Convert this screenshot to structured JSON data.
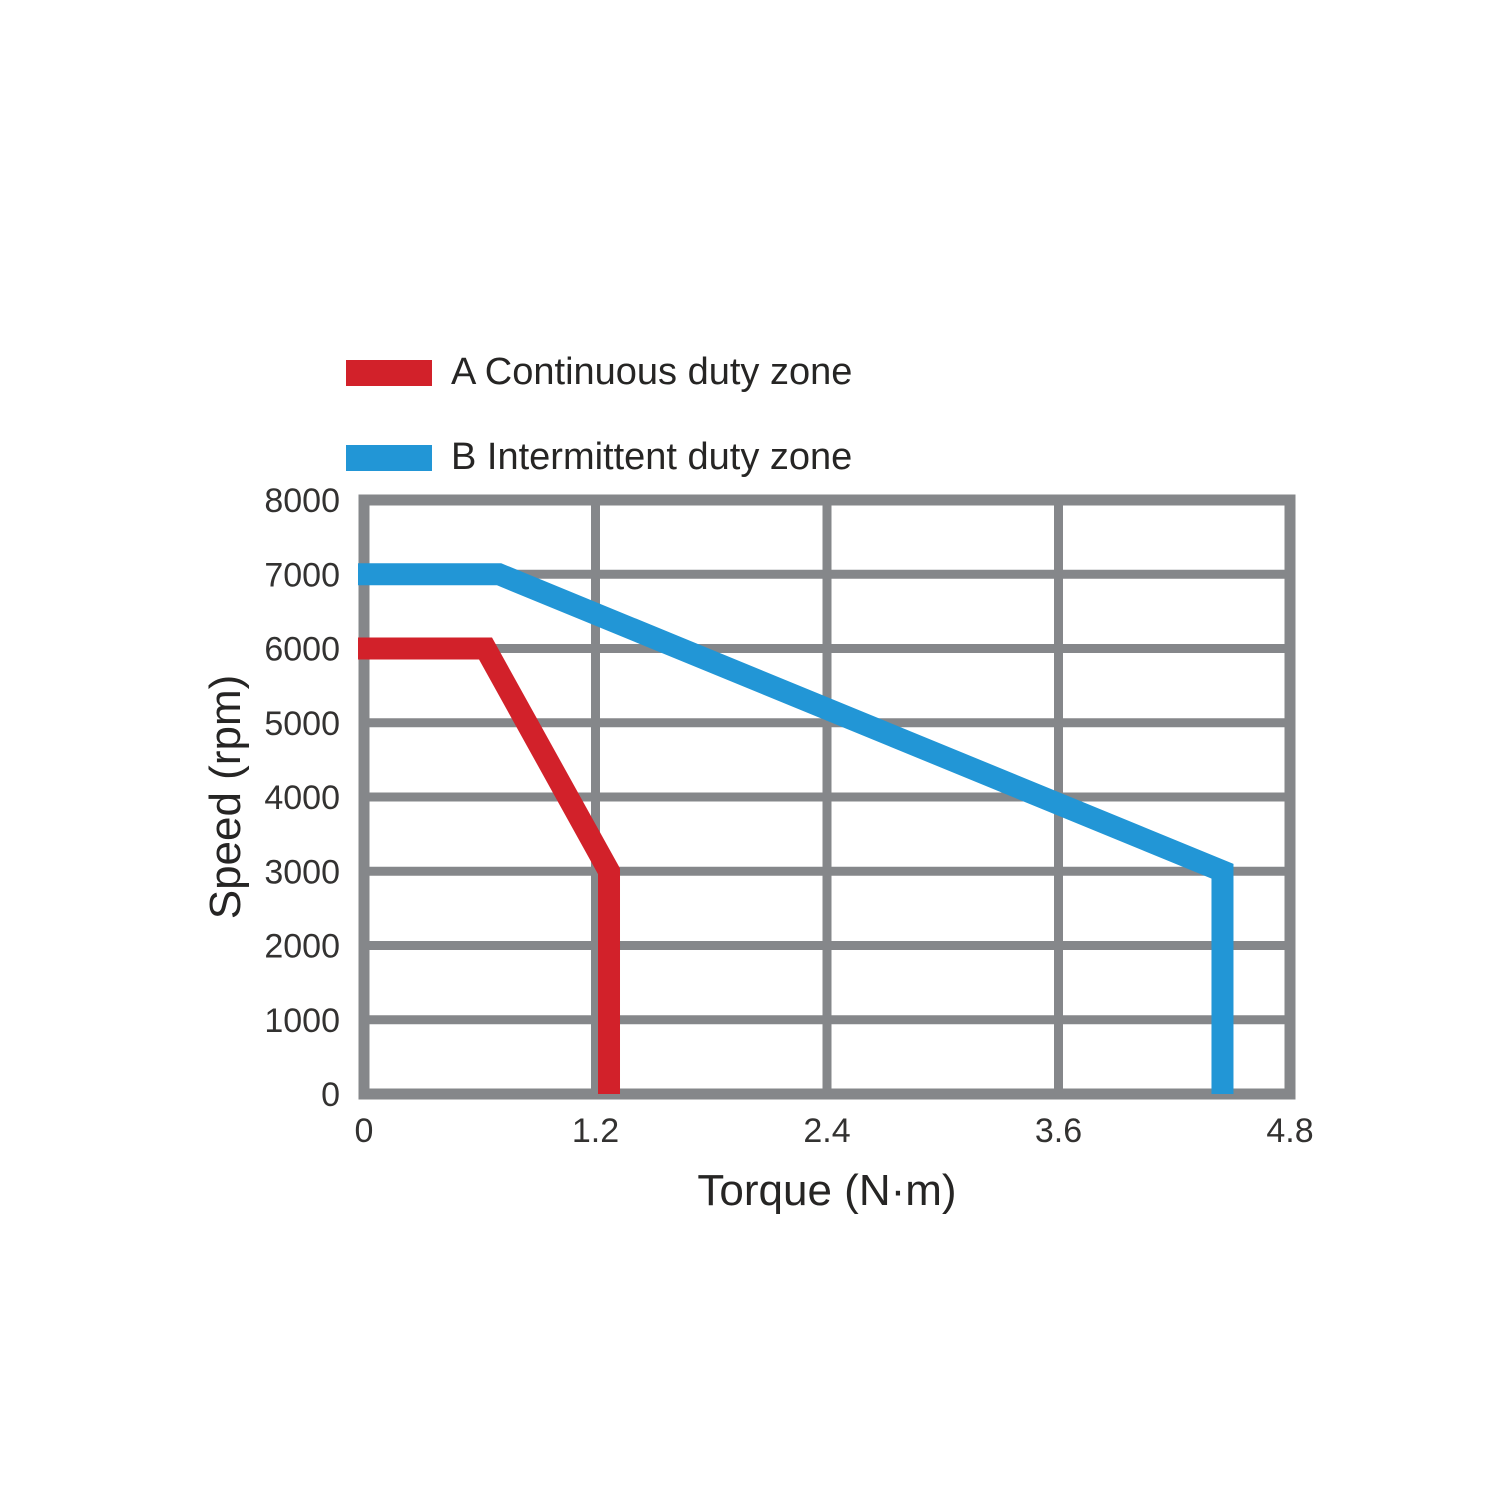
{
  "chart_data": {
    "type": "line",
    "title": "",
    "xlabel": "Torque (N·m)",
    "ylabel": "Speed (rpm)",
    "xlim": [
      0,
      4.8
    ],
    "ylim": [
      0,
      8000
    ],
    "x_ticks": [
      0,
      1.2,
      2.4,
      3.6,
      4.8
    ],
    "x_tick_labels": [
      "0",
      "1.2",
      "2.4",
      "3.6",
      "4.8"
    ],
    "y_ticks": [
      0,
      1000,
      2000,
      3000,
      4000,
      5000,
      6000,
      7000,
      8000
    ],
    "y_tick_labels": [
      "0",
      "1000",
      "2000",
      "3000",
      "4000",
      "5000",
      "6000",
      "7000",
      "8000"
    ],
    "grid": true,
    "legend_position": "top-left",
    "series": [
      {
        "name": "A Continuous duty zone",
        "color": "#D2212A",
        "points": [
          [
            0,
            6000
          ],
          [
            0.63,
            6000
          ],
          [
            1.27,
            3000
          ],
          [
            1.27,
            0
          ]
        ]
      },
      {
        "name": "B Intermittent duty zone",
        "color": "#2296D6",
        "points": [
          [
            0,
            7000
          ],
          [
            0.7,
            7000
          ],
          [
            4.45,
            3000
          ],
          [
            4.45,
            0
          ]
        ]
      }
    ]
  },
  "colors": {
    "grid": "#85878A",
    "text": "#262524",
    "tick_text": "#333231"
  }
}
